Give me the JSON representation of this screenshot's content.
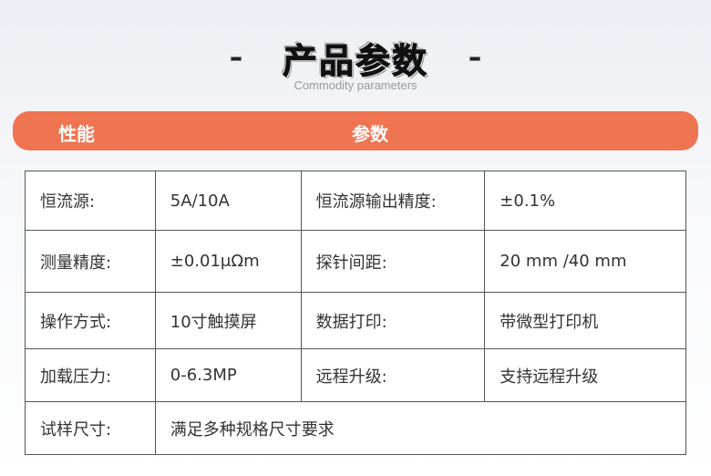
{
  "header": {
    "title": "产品参数",
    "subtitle": "Commodity parameters"
  },
  "table_header": {
    "col1": "性能",
    "col2": "参数"
  },
  "rows": [
    [
      "恒流源:",
      "5A/10A",
      "恒流源输出精度:",
      "±0.1%"
    ],
    [
      "测量精度:",
      "±0.01μΩm",
      "探针间距:",
      "20 mm /40 mm"
    ],
    [
      "操作方式:",
      "10寸触摸屏",
      "数据打印:",
      "带微型打印机"
    ],
    [
      "加载压力:",
      "0-6.3MP",
      "远程升级:",
      "支持远程升级"
    ]
  ],
  "last_row": [
    "试样尺寸:",
    "满足多种规格尺寸要求"
  ],
  "colors": {
    "accent": "#ef7452"
  }
}
